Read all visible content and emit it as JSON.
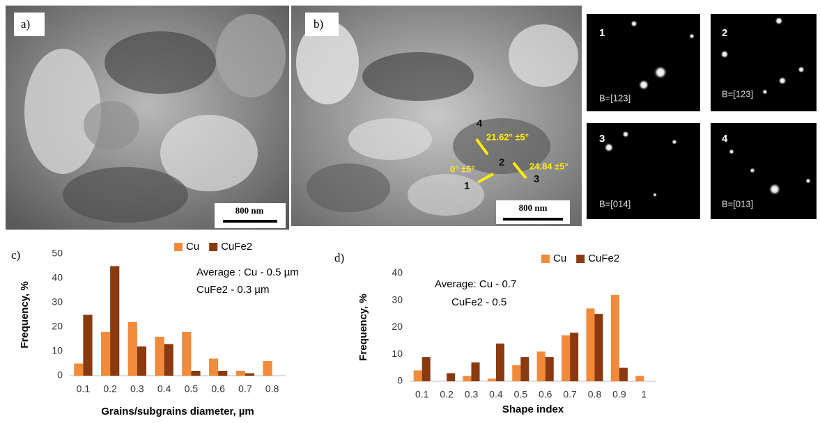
{
  "panels": {
    "a": {
      "label": "a)",
      "scale_bar": "800 nm"
    },
    "b": {
      "label": "b)",
      "scale_bar": "800 nm",
      "points": [
        "1",
        "2",
        "3",
        "4"
      ],
      "angles": [
        "21.62° ±5°",
        "24.84 ±5°",
        "0° ±5°"
      ]
    },
    "diffraction": [
      {
        "number": "1",
        "zone": "B=[123]"
      },
      {
        "number": "2",
        "zone": "B=[123]"
      },
      {
        "number": "3",
        "zone": "B=[014]"
      },
      {
        "number": "4",
        "zone": "B=[013]"
      }
    ]
  },
  "chart_data": [
    {
      "type": "bar",
      "panel_label": "c)",
      "x_label": "Grains/subgrains diameter, µm",
      "y_label": "Frequency, %",
      "annotations": [
        "Average : Cu - 0.5 µm",
        "CuFe2 - 0.3 µm"
      ],
      "categories": [
        "0.1",
        "0.2",
        "0.3",
        "0.4",
        "0.5",
        "0.6",
        "0.7",
        "0.8"
      ],
      "series": [
        {
          "name": "Cu",
          "color": "#f28a3b",
          "values": [
            5,
            18,
            22,
            16,
            18,
            7,
            2,
            6
          ]
        },
        {
          "name": "CuFe2",
          "color": "#8a3a10",
          "values": [
            25,
            45,
            12,
            13,
            2,
            2,
            1,
            0
          ]
        }
      ],
      "ylim": [
        0,
        50
      ],
      "yticks": [
        0,
        10,
        20,
        30,
        40,
        50
      ],
      "grid": false
    },
    {
      "type": "bar",
      "panel_label": "d)",
      "x_label": "Shape index",
      "y_label": "Frequency, %",
      "annotations": [
        "Average:  Cu -  0.7",
        "CuFe2 -  0.5"
      ],
      "categories": [
        "0.1",
        "0.2",
        "0.3",
        "0.4",
        "0.5",
        "0.6",
        "0.7",
        "0.8",
        "0.9",
        "1"
      ],
      "series": [
        {
          "name": "Cu",
          "color": "#f28a3b",
          "values": [
            4,
            0,
            2,
            1,
            6,
            11,
            17,
            27,
            32,
            2
          ]
        },
        {
          "name": "CuFe2",
          "color": "#8a3a10",
          "values": [
            9,
            3,
            7,
            14,
            9,
            9,
            18,
            25,
            5,
            0
          ]
        }
      ],
      "ylim": [
        0,
        40
      ],
      "yticks": [
        0,
        10,
        20,
        30,
        40
      ],
      "grid": false
    }
  ]
}
